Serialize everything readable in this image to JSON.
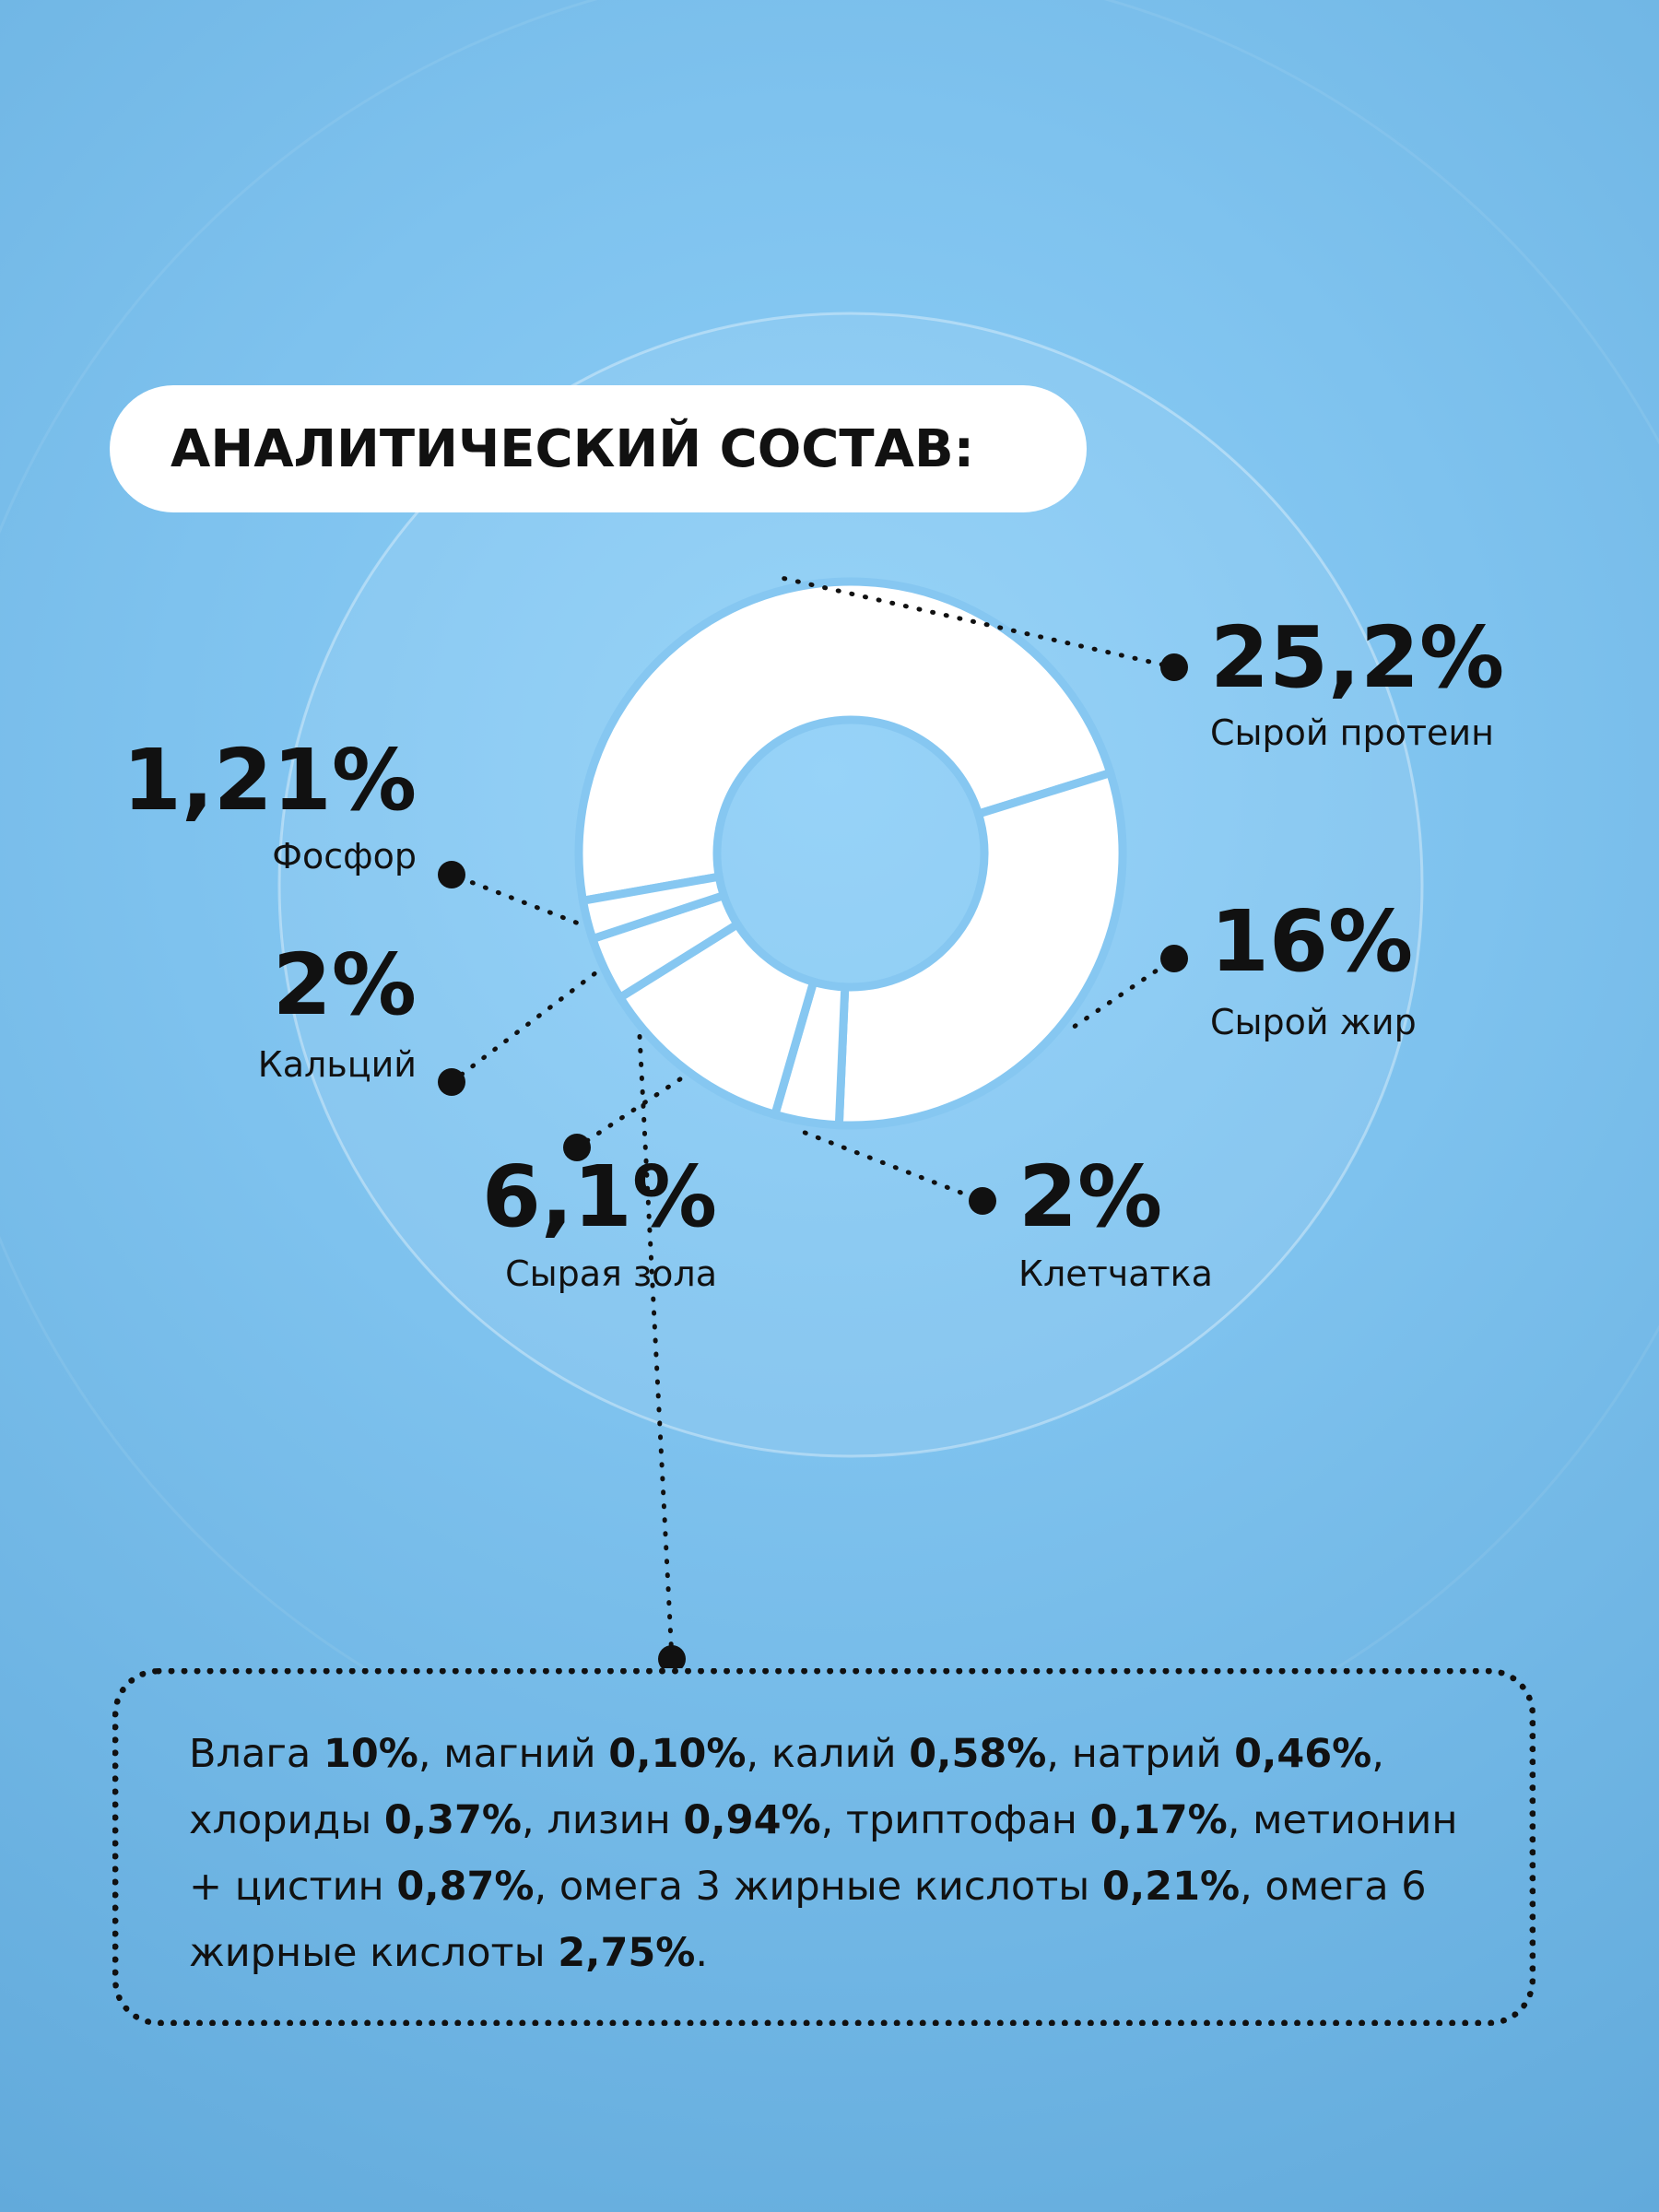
{
  "chart_data": {
    "type": "pie",
    "title": "АНАЛИТИЧЕСКИЙ СОСТАВ:",
    "categories": [
      "Сырой протеин",
      "Сырой жир",
      "Клетчатка",
      "Сырая зола",
      "Кальций",
      "Фосфор"
    ],
    "values": [
      25.2,
      16,
      2,
      6.1,
      2,
      1.21
    ],
    "value_labels": [
      "25,2%",
      "16%",
      "2%",
      "6,1%",
      "2%",
      "1,21%"
    ],
    "color": "#ffffff"
  },
  "note": {
    "runs": [
      {
        "text": "Влага ",
        "bold": false
      },
      {
        "text": "10%",
        "bold": true
      },
      {
        "text": ", магний ",
        "bold": false
      },
      {
        "text": "0,10%",
        "bold": true
      },
      {
        "text": ", калий ",
        "bold": false
      },
      {
        "text": "0,58%",
        "bold": true
      },
      {
        "text": ", натрий ",
        "bold": false
      },
      {
        "text": "0,46%",
        "bold": true
      },
      {
        "text": ", хлориды ",
        "bold": false
      },
      {
        "text": "0,37%",
        "bold": true
      },
      {
        "text": ", лизин ",
        "bold": false
      },
      {
        "text": "0,94%",
        "bold": true
      },
      {
        "text": ", триптофан ",
        "bold": false
      },
      {
        "text": "0,17%",
        "bold": true
      },
      {
        "text": ", метионин + цистин ",
        "bold": false
      },
      {
        "text": "0,87%",
        "bold": true
      },
      {
        "text": ", омега 3 жирные кислоты ",
        "bold": false
      },
      {
        "text": "0,21%",
        "bold": true
      },
      {
        "text": ", омега 6 жирные кислоты ",
        "bold": false
      },
      {
        "text": "2,75%",
        "bold": true
      },
      {
        "text": ".",
        "bold": false
      }
    ]
  }
}
